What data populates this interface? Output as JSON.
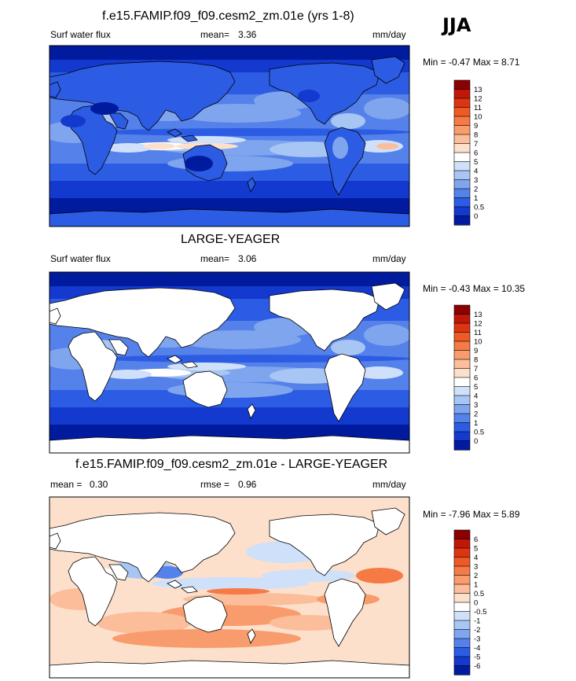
{
  "season": "JJA",
  "panels": [
    {
      "title": "f.e15.FAMIP.f09_f09.cesm2_zm.01e (yrs 1-8)",
      "left_label": "Surf water flux",
      "center_label": "mean=",
      "center_value": "3.36",
      "units": "mm/day",
      "minmax": "Min = -0.47 Max = 8.71",
      "map_kind": "model"
    },
    {
      "title": "LARGE-YEAGER",
      "left_label": "Surf water flux",
      "center_label": "mean=",
      "center_value": "3.06",
      "units": "mm/day",
      "minmax": "Min = -0.43 Max = 10.35",
      "map_kind": "obs"
    },
    {
      "title": "f.e15.FAMIP.f09_f09.cesm2_zm.01e - LARGE-YEAGER",
      "left_label": "mean =",
      "left_value": "0.30",
      "center_label": "rmse =",
      "center_value": "0.96",
      "units": "mm/day",
      "minmax": "Min = -7.96 Max = 5.89",
      "map_kind": "diff"
    }
  ],
  "colorbars": {
    "abs": {
      "labels": [
        "13",
        "12",
        "11",
        "10",
        "9",
        "8",
        "7",
        "6",
        "5",
        "4",
        "3",
        "2",
        "1",
        "0.5",
        "0"
      ],
      "colors": [
        "#8b0000",
        "#c1170b",
        "#dd3411",
        "#ef5a24",
        "#f57a45",
        "#f89c6e",
        "#fbbd9a",
        "#fde0cb",
        "#ffffff",
        "#cfe0fa",
        "#a8c6f3",
        "#7ea5ee",
        "#5581ea",
        "#2c5ce3",
        "#1339cf",
        "#001b9e"
      ]
    },
    "diff": {
      "labels": [
        "6",
        "5",
        "4",
        "3",
        "2",
        "1",
        "0.5",
        "0",
        "-0.5",
        "-1",
        "-2",
        "-3",
        "-4",
        "-5",
        "-6"
      ],
      "colors": [
        "#8b0000",
        "#c1170b",
        "#dd3411",
        "#ef5a24",
        "#f57a45",
        "#f89c6e",
        "#fbbd9a",
        "#fde0cb",
        "#ffffff",
        "#cfe0fa",
        "#a8c6f3",
        "#7ea5ee",
        "#5581ea",
        "#2c5ce3",
        "#1339cf",
        "#001b9e"
      ]
    }
  },
  "chart_data": [
    {
      "type": "heatmap",
      "title": "f.e15.FAMIP.f09_f09.cesm2_zm.01e (yrs 1-8)",
      "variable": "Surf water flux",
      "units": "mm/day",
      "mean": 3.36,
      "min": -0.47,
      "max": 8.71,
      "levels": [
        0,
        0.5,
        1,
        2,
        3,
        4,
        5,
        6,
        7,
        8,
        9,
        10,
        11,
        12,
        13
      ]
    },
    {
      "type": "heatmap",
      "title": "LARGE-YEAGER",
      "variable": "Surf water flux",
      "units": "mm/day",
      "mean": 3.06,
      "min": -0.43,
      "max": 10.35,
      "levels": [
        0,
        0.5,
        1,
        2,
        3,
        4,
        5,
        6,
        7,
        8,
        9,
        10,
        11,
        12,
        13
      ]
    },
    {
      "type": "heatmap",
      "title": "f.e15.FAMIP.f09_f09.cesm2_zm.01e - LARGE-YEAGER",
      "units": "mm/day",
      "mean": 0.3,
      "rmse": 0.96,
      "min": -7.96,
      "max": 5.89,
      "levels": [
        -6,
        -5,
        -4,
        -3,
        -2,
        -1,
        -0.5,
        0,
        0.5,
        1,
        2,
        3,
        4,
        5,
        6
      ]
    }
  ]
}
